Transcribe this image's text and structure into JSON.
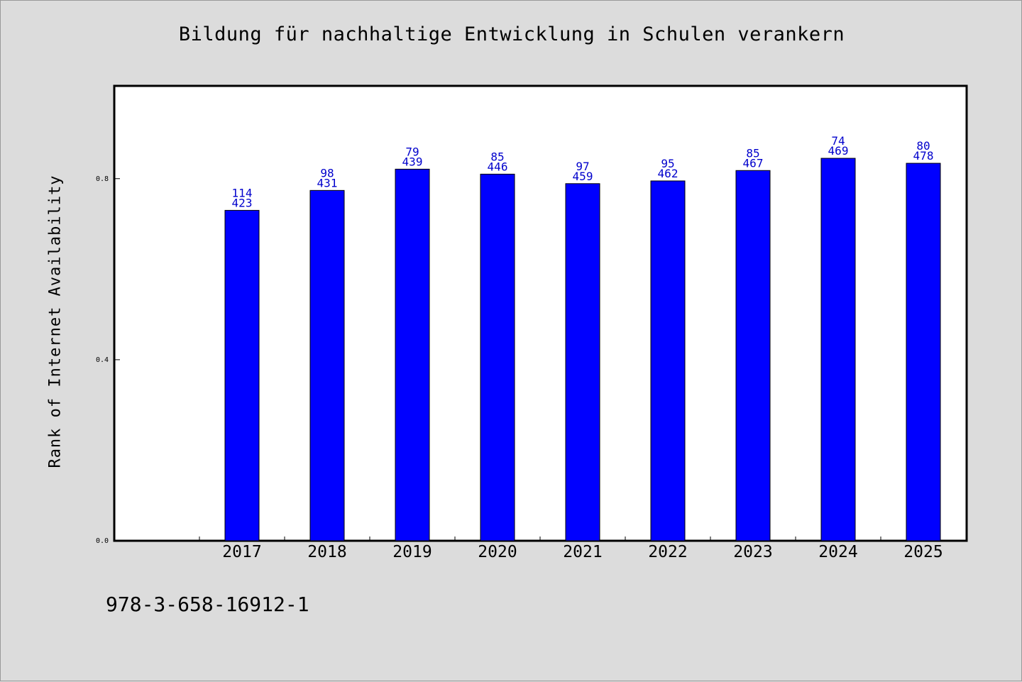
{
  "chart_data": {
    "type": "bar",
    "title": "Bildung für nachhaltige Entwicklung in Schulen verankern",
    "xlabel": "",
    "ylabel": "Rank of Internet Availability",
    "categories": [
      "2017",
      "2018",
      "2019",
      "2020",
      "2021",
      "2022",
      "2023",
      "2024",
      "2025"
    ],
    "values": [
      0.73,
      0.774,
      0.821,
      0.81,
      0.789,
      0.795,
      0.818,
      0.845,
      0.834
    ],
    "bar_labels_top": [
      "114",
      "98",
      "79",
      "85",
      "97",
      "95",
      "85",
      "74",
      "80"
    ],
    "bar_labels_bottom": [
      "423",
      "431",
      "439",
      "446",
      "459",
      "462",
      "467",
      "469",
      "478"
    ],
    "yticks": [
      "0.0",
      "0.4",
      "0.8"
    ],
    "ylim": [
      0,
      1.005
    ],
    "grid": false,
    "legend": "none",
    "bar_color": "#0000ff",
    "label_color": "#0000cc"
  },
  "footnote": "978-3-658-16912-1"
}
